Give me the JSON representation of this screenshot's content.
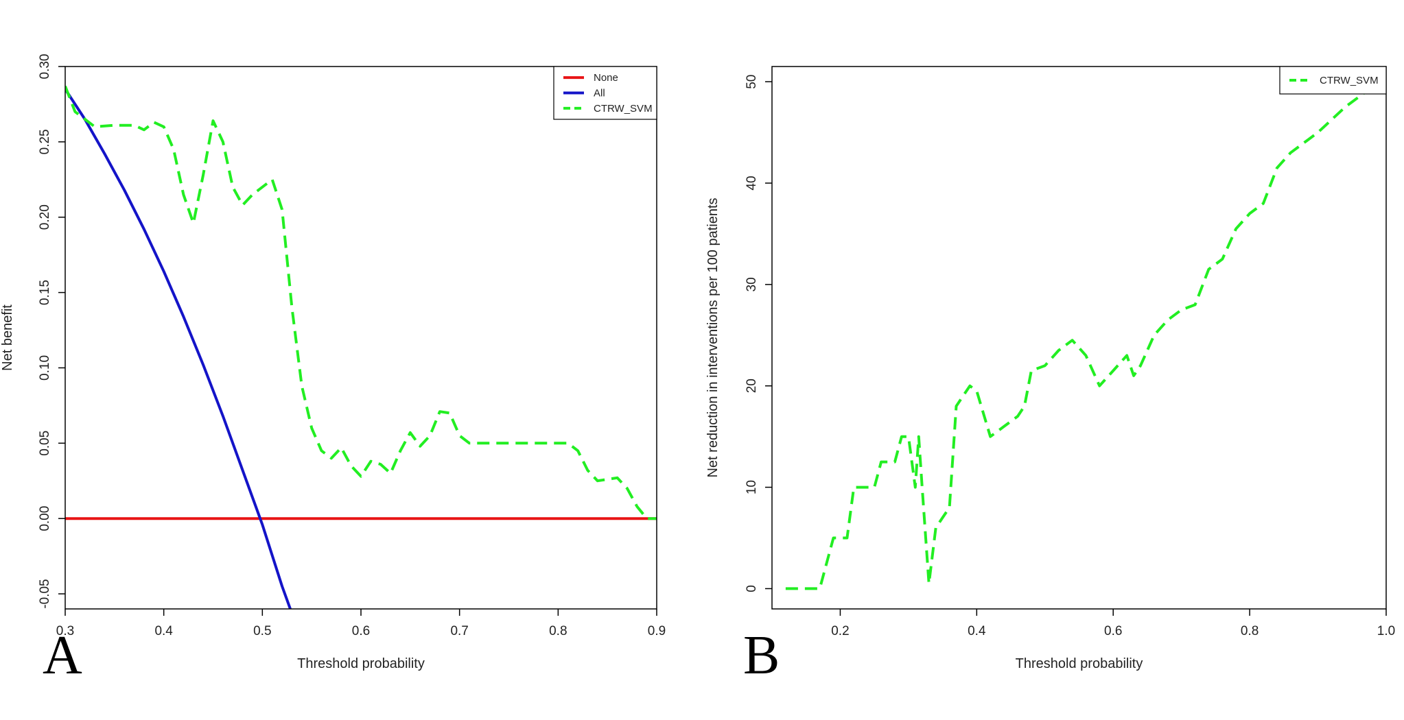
{
  "chart_data": [
    {
      "panel": "A",
      "type": "line",
      "title": "",
      "xlabel": "Threshold probability",
      "ylabel": "Net benefit",
      "xlim": [
        0.3,
        0.9
      ],
      "ylim": [
        -0.06,
        0.3
      ],
      "xticks": [
        0.3,
        0.4,
        0.5,
        0.6,
        0.7,
        0.8,
        0.9
      ],
      "xtick_labels": [
        "0.3",
        "0.4",
        "0.5",
        "0.6",
        "0.7",
        "0.8",
        "0.9"
      ],
      "yticks": [
        -0.05,
        0.0,
        0.05,
        0.1,
        0.15,
        0.2,
        0.25,
        0.3
      ],
      "ytick_labels": [
        "-0.05",
        "0.00",
        "0.05",
        "0.10",
        "0.15",
        "0.20",
        "0.25",
        "0.30"
      ],
      "grid": false,
      "legend": "top-right",
      "series": [
        {
          "name": "None",
          "color": "#e81416",
          "dash": "solid",
          "x": [
            0.3,
            0.9
          ],
          "y": [
            0.0,
            0.0
          ]
        },
        {
          "name": "All",
          "color": "#1414c8",
          "dash": "solid",
          "x": [
            0.3,
            0.32,
            0.34,
            0.36,
            0.38,
            0.4,
            0.42,
            0.44,
            0.46,
            0.48,
            0.5,
            0.52,
            0.53
          ],
          "y": [
            0.285,
            0.265,
            0.242,
            0.218,
            0.192,
            0.164,
            0.134,
            0.102,
            0.068,
            0.032,
            -0.004,
            -0.045,
            -0.063
          ]
        },
        {
          "name": "CTRW_SVM",
          "color": "#22ee22",
          "dash": "dashed",
          "x": [
            0.3,
            0.31,
            0.33,
            0.35,
            0.37,
            0.38,
            0.39,
            0.4,
            0.41,
            0.42,
            0.43,
            0.44,
            0.45,
            0.46,
            0.47,
            0.48,
            0.49,
            0.5,
            0.51,
            0.52,
            0.53,
            0.54,
            0.55,
            0.56,
            0.57,
            0.58,
            0.59,
            0.6,
            0.61,
            0.62,
            0.63,
            0.64,
            0.65,
            0.66,
            0.67,
            0.68,
            0.69,
            0.7,
            0.71,
            0.72,
            0.75,
            0.78,
            0.8,
            0.81,
            0.82,
            0.83,
            0.84,
            0.86,
            0.87,
            0.88,
            0.89,
            0.9
          ],
          "y": [
            0.287,
            0.27,
            0.26,
            0.261,
            0.261,
            0.258,
            0.263,
            0.26,
            0.245,
            0.215,
            0.196,
            0.228,
            0.264,
            0.25,
            0.22,
            0.208,
            0.215,
            0.22,
            0.225,
            0.205,
            0.14,
            0.088,
            0.06,
            0.045,
            0.04,
            0.047,
            0.035,
            0.028,
            0.038,
            0.036,
            0.03,
            0.045,
            0.057,
            0.048,
            0.055,
            0.071,
            0.07,
            0.055,
            0.05,
            0.05,
            0.05,
            0.05,
            0.05,
            0.05,
            0.045,
            0.032,
            0.025,
            0.027,
            0.02,
            0.008,
            0.0,
            0.0
          ]
        }
      ]
    },
    {
      "panel": "B",
      "type": "line",
      "title": "",
      "xlabel": "Threshold probability",
      "ylabel": "Net reduction in interventions per 100 patients",
      "xlim": [
        0.1,
        1.0
      ],
      "ylim": [
        -2,
        51.5
      ],
      "xticks": [
        0.2,
        0.4,
        0.6,
        0.8,
        1.0
      ],
      "xtick_labels": [
        "0.2",
        "0.4",
        "0.6",
        "0.8",
        "1.0"
      ],
      "yticks": [
        0,
        10,
        20,
        30,
        40,
        50
      ],
      "ytick_labels": [
        "0",
        "10",
        "20",
        "30",
        "40",
        "50"
      ],
      "grid": false,
      "legend": "top-right",
      "series": [
        {
          "name": "CTRW_SVM",
          "color": "#22ee22",
          "dash": "dashed",
          "x": [
            0.12,
            0.15,
            0.17,
            0.19,
            0.21,
            0.22,
            0.24,
            0.25,
            0.26,
            0.27,
            0.28,
            0.29,
            0.3,
            0.31,
            0.315,
            0.32,
            0.33,
            0.34,
            0.35,
            0.36,
            0.37,
            0.38,
            0.39,
            0.4,
            0.42,
            0.44,
            0.46,
            0.47,
            0.48,
            0.5,
            0.52,
            0.54,
            0.56,
            0.58,
            0.6,
            0.62,
            0.63,
            0.64,
            0.66,
            0.68,
            0.7,
            0.72,
            0.74,
            0.76,
            0.78,
            0.8,
            0.82,
            0.84,
            0.86,
            0.9,
            0.94,
            0.98
          ],
          "y": [
            0,
            0,
            0,
            5,
            5,
            10,
            10,
            10,
            12.5,
            12.5,
            12.5,
            15,
            15,
            10,
            15,
            10,
            0.5,
            6,
            7,
            8,
            18,
            19,
            20,
            19.5,
            15,
            16,
            17,
            18,
            21.5,
            22,
            23.5,
            24.5,
            23,
            20,
            21.5,
            23,
            21,
            22,
            25,
            26.5,
            27.5,
            28,
            31.5,
            32.5,
            35.5,
            37,
            38,
            41.5,
            43,
            45,
            47.5,
            49.5
          ]
        }
      ]
    }
  ],
  "panel_labels": [
    "A",
    "B"
  ]
}
